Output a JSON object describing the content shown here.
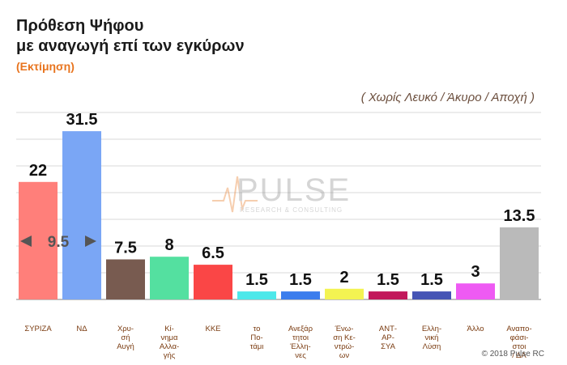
{
  "header": {
    "title_line1": "Πρόθεση Ψήφου",
    "title_line2": "με αναγωγή επί των εγκύρων",
    "estimate_label": "(Εκτίμηση)",
    "note": "( Χωρίς Λευκό / Άκυρο / Αποχή )"
  },
  "watermark": {
    "brand": "PULSE",
    "tagline": "RESEARCH & CONSULTING"
  },
  "footer": {
    "copyright": "© 2018 Pulse RC"
  },
  "chart_data": {
    "type": "bar",
    "title": "Πρόθεση Ψήφου με αναγωγή επί των εγκύρων",
    "subtitle": "(Εκτίμηση)",
    "xlabel": "",
    "ylabel": "",
    "ylim": [
      0,
      35
    ],
    "grid": true,
    "categories": [
      [
        "ΣΥΡΙΖΑ"
      ],
      [
        "ΝΔ"
      ],
      [
        "Χρυ-",
        "σή",
        "Αυγή"
      ],
      [
        "Κί-",
        "νημα",
        "Αλλα-",
        "γής"
      ],
      [
        "ΚΚΕ"
      ],
      [
        "το",
        "Πο-",
        "τάμι"
      ],
      [
        "Ανεξάρ",
        "τητοι",
        "Έλλη-",
        "νες"
      ],
      [
        "Ένω-",
        "ση Κε-",
        "ντρώ-",
        "ων"
      ],
      [
        "ΑΝΤ-",
        "ΑΡ-",
        "ΣΥΑ"
      ],
      [
        "Ελλη-",
        "νική",
        "Λύση"
      ],
      [
        "Άλλο"
      ],
      [
        "Αναπο-",
        "φάσι-",
        "στοι",
        "/ ΔΑ"
      ]
    ],
    "values": [
      22,
      31.5,
      7.5,
      8,
      6.5,
      1.5,
      1.5,
      2,
      1.5,
      1.5,
      3,
      13.5
    ],
    "colors": [
      "#ff7f7a",
      "#7aa6f5",
      "#785b50",
      "#54e0a0",
      "#fa4646",
      "#4de8ea",
      "#3b7ded",
      "#f3f352",
      "#c2185b",
      "#4554b5",
      "#ee5af3",
      "#bababa"
    ],
    "annotation": {
      "text": "9.5",
      "between": [
        "ΣΥΡΙΖΑ",
        "ΝΔ"
      ],
      "arrows": true
    }
  }
}
